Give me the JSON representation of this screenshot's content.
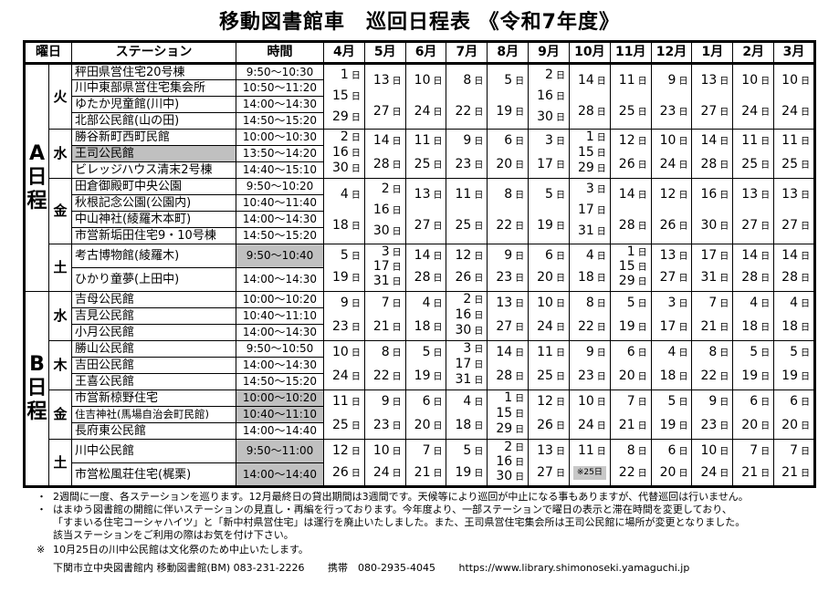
{
  "title": "移動図書館車　巡回日程表 《令和7年度》",
  "headers": {
    "day": "曜日",
    "station": "ステーション",
    "time": "時間",
    "months": [
      "4月",
      "5月",
      "6月",
      "7月",
      "8月",
      "9月",
      "10月",
      "11月",
      "12月",
      "1月",
      "2月",
      "3月"
    ]
  },
  "day_unit": "日",
  "highlight_color": "#c0c0c0",
  "groups": [
    {
      "label": "A日程",
      "blocks": [
        {
          "day": "火",
          "stations": [
            {
              "name": "秤田県営住宅20号棟",
              "time": "9:50～10:30"
            },
            {
              "name": "川中東部県営住宅集会所",
              "time": "10:50～11:20"
            },
            {
              "name": "ゆたか児童館(川中)",
              "time": "14:00～14:30"
            },
            {
              "name": "北部公民館(山の田)",
              "time": "14:50～15:20"
            }
          ],
          "dates": [
            [
              "1",
              "15",
              "29"
            ],
            [
              "13",
              "27"
            ],
            [
              "10",
              "24"
            ],
            [
              "8",
              "22"
            ],
            [
              "5",
              "19"
            ],
            [
              "2",
              "16",
              "30"
            ],
            [
              "14",
              "28"
            ],
            [
              "11",
              "25"
            ],
            [
              "9",
              "23"
            ],
            [
              "13",
              "27"
            ],
            [
              "10",
              "24"
            ],
            [
              "10",
              "24"
            ]
          ]
        },
        {
          "day": "水",
          "stations": [
            {
              "name": "勝谷新町西町民館",
              "time": "10:00～10:30"
            },
            {
              "name": "王司公民館",
              "time": "13:50～14:20",
              "name_highlight": true
            },
            {
              "name": "ビレッジハウス清末2号棟",
              "time": "14:40～15:10"
            }
          ],
          "dates": [
            [
              "2",
              "16",
              "30"
            ],
            [
              "14",
              "28"
            ],
            [
              "11",
              "25"
            ],
            [
              "9",
              "23"
            ],
            [
              "6",
              "20"
            ],
            [
              "3",
              "17"
            ],
            [
              "1",
              "15",
              "29"
            ],
            [
              "12",
              "26"
            ],
            [
              "10",
              "24"
            ],
            [
              "14",
              "28"
            ],
            [
              "11",
              "25"
            ],
            [
              "11",
              "25"
            ]
          ]
        },
        {
          "day": "金",
          "stations": [
            {
              "name": "田倉御殿町中央公園",
              "time": "9:50～10:20"
            },
            {
              "name": "秋根記念公園(公園内)",
              "time": "10:40～11:40"
            },
            {
              "name": "中山神社(綾羅木本町)",
              "time": "14:00～14:30"
            },
            {
              "name": "市営新垢田住宅9・10号棟",
              "time": "14:50～15:20"
            }
          ],
          "dates": [
            [
              "4",
              "18"
            ],
            [
              "2",
              "16",
              "30"
            ],
            [
              "13",
              "27"
            ],
            [
              "11",
              "25"
            ],
            [
              "8",
              "22"
            ],
            [
              "5",
              "19"
            ],
            [
              "3",
              "17",
              "31"
            ],
            [
              "14",
              "28"
            ],
            [
              "12",
              "26"
            ],
            [
              "16",
              "30"
            ],
            [
              "13",
              "27"
            ],
            [
              "13",
              "27"
            ]
          ]
        },
        {
          "day": "土",
          "stations": [
            {
              "name": "考古博物館(綾羅木)",
              "time": "9:50～10:40",
              "time_highlight": true
            },
            {
              "name": "ひかり童夢(上田中)",
              "time": "14:00～14:30"
            }
          ],
          "dates": [
            [
              "5",
              "19"
            ],
            [
              "3",
              "17",
              "31"
            ],
            [
              "14",
              "28"
            ],
            [
              "12",
              "26"
            ],
            [
              "9",
              "23"
            ],
            [
              "6",
              "20"
            ],
            [
              "4",
              "18"
            ],
            [
              "1",
              "15",
              "29"
            ],
            [
              "13",
              "27"
            ],
            [
              "17",
              "31"
            ],
            [
              "14",
              "28"
            ],
            [
              "14",
              "28"
            ]
          ]
        }
      ]
    },
    {
      "label": "B日程",
      "blocks": [
        {
          "day": "水",
          "stations": [
            {
              "name": "吉母公民館",
              "time": "10:00～10:20"
            },
            {
              "name": "吉見公民館",
              "time": "10:40～11:10"
            },
            {
              "name": "小月公民館",
              "time": "14:00～14:30"
            }
          ],
          "dates": [
            [
              "9",
              "23"
            ],
            [
              "7",
              "21"
            ],
            [
              "4",
              "18"
            ],
            [
              "2",
              "16",
              "30"
            ],
            [
              "13",
              "27"
            ],
            [
              "10",
              "24"
            ],
            [
              "8",
              "22"
            ],
            [
              "5",
              "19"
            ],
            [
              "3",
              "17"
            ],
            [
              "7",
              "21"
            ],
            [
              "4",
              "18"
            ],
            [
              "4",
              "18"
            ]
          ]
        },
        {
          "day": "木",
          "stations": [
            {
              "name": "勝山公民館",
              "time": "9:50～10:50"
            },
            {
              "name": "吉田公民館",
              "time": "14:00～14:30"
            },
            {
              "name": "王喜公民館",
              "time": "14:50～15:20"
            }
          ],
          "dates": [
            [
              "10",
              "24"
            ],
            [
              "8",
              "22"
            ],
            [
              "5",
              "19"
            ],
            [
              "3",
              "17",
              "31"
            ],
            [
              "14",
              "28"
            ],
            [
              "11",
              "25"
            ],
            [
              "9",
              "23"
            ],
            [
              "6",
              "20"
            ],
            [
              "4",
              "18"
            ],
            [
              "8",
              "22"
            ],
            [
              "5",
              "19"
            ],
            [
              "5",
              "19"
            ]
          ]
        },
        {
          "day": "金",
          "stations": [
            {
              "name": "市営新椋野住宅",
              "time": "10:00～10:20",
              "time_highlight": true
            },
            {
              "name": "住吉神社(馬場自治会町民館)",
              "time": "10:40～11:10",
              "time_highlight": true
            },
            {
              "name": "長府東公民館",
              "time": "14:00～14:40"
            }
          ],
          "dates": [
            [
              "11",
              "25"
            ],
            [
              "9",
              "23"
            ],
            [
              "6",
              "20"
            ],
            [
              "4",
              "18"
            ],
            [
              "1",
              "15",
              "29"
            ],
            [
              "12",
              "26"
            ],
            [
              "10",
              "24"
            ],
            [
              "7",
              "21"
            ],
            [
              "5",
              "19"
            ],
            [
              "9",
              "23"
            ],
            [
              "6",
              "20"
            ],
            [
              "6",
              "20"
            ]
          ]
        },
        {
          "day": "土",
          "stations": [
            {
              "name": "川中公民館",
              "time": "9:50～11:00",
              "time_highlight": true
            },
            {
              "name": "市営松風荘住宅(梶栗)",
              "time": "14:00～14:40",
              "time_highlight": true
            }
          ],
          "dates": [
            [
              "12",
              "26"
            ],
            [
              "10",
              "24"
            ],
            [
              "7",
              "21"
            ],
            [
              "5",
              "19"
            ],
            [
              "2",
              "16",
              "30"
            ],
            [
              "13",
              "27"
            ],
            [
              "11",
              "※25日"
            ],
            [
              "8",
              "22"
            ],
            [
              "6",
              "20"
            ],
            [
              "10",
              "24"
            ],
            [
              "7",
              "21"
            ],
            [
              "7",
              "21"
            ]
          ]
        }
      ]
    }
  ],
  "notes": [
    {
      "mark": "・",
      "lines": [
        "2週間に一度、各ステーションを巡ります。12月最終日の貸出期間は3週間です。天候等により巡回が中止になる事もありますが、代替巡回は行いません。"
      ]
    },
    {
      "mark": "・",
      "lines": [
        "はまゆう図書館の開館に伴いステーションの見直し・再編を行っております。今年度より、一部ステーションで曜日の表示と滞在時間を変更しており、",
        "「すまいる住宅コーシャハイツ」と「新中村県営住宅」は運行を廃止いたしました。また、王司県営住宅集会所は王司公民館に場所が変更となりました。",
        "該当ステーションをご利用の際はお気を付け下さい。"
      ]
    },
    {
      "mark": "※",
      "lines": [
        "10月25日の川中公民館は文化祭のため中止いたします。"
      ]
    }
  ],
  "footer": {
    "office": "下関市立中央図書館内 移動図書館(BM) 083-231-2226",
    "mobile": "携帯　080-2935-4045",
    "url": "https://www.library.shimonoseki.yamaguchi.jp"
  }
}
